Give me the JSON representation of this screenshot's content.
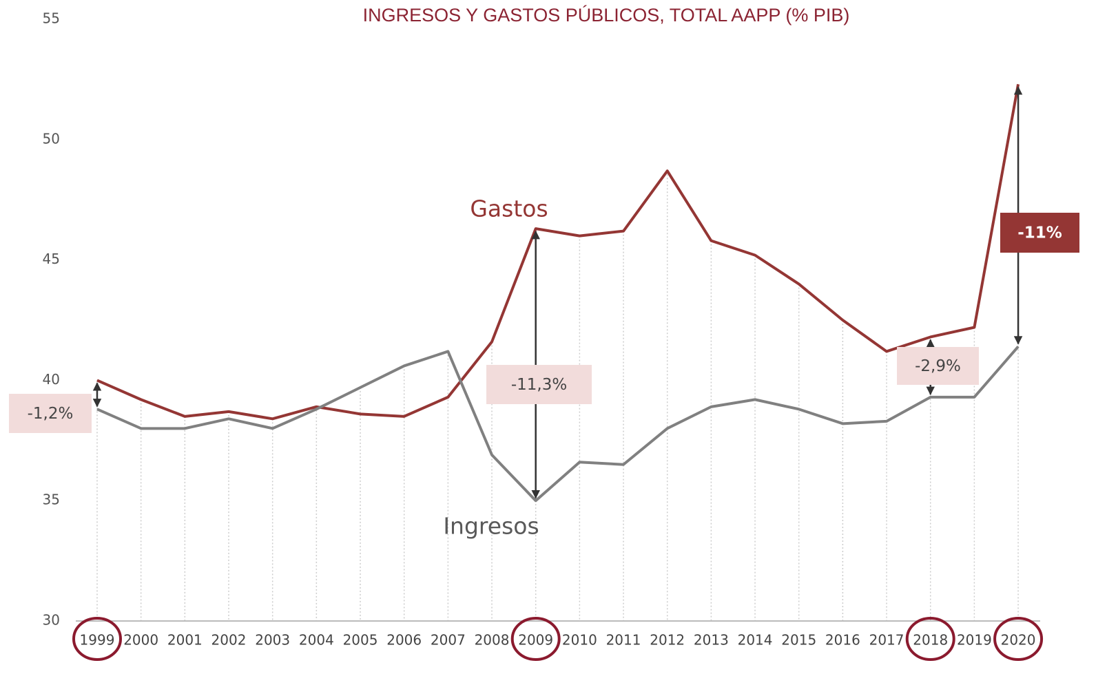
{
  "chart_data": {
    "type": "line",
    "title": "INGRESOS  Y GASTOS PÚBLICOS, TOTAL AAPP (% PIB)",
    "categories": [
      "1999",
      "2000",
      "2001",
      "2002",
      "2003",
      "2004",
      "2005",
      "2006",
      "2007",
      "2008",
      "2009",
      "2010",
      "2011",
      "2012",
      "2013",
      "2014",
      "2015",
      "2016",
      "2017",
      "2018",
      "2019",
      "2020"
    ],
    "series": [
      {
        "name": "Gastos",
        "color": "#943634",
        "values": [
          40.0,
          39.2,
          38.5,
          38.7,
          38.4,
          38.9,
          38.6,
          38.5,
          39.3,
          41.6,
          46.3,
          46.0,
          46.2,
          48.7,
          45.8,
          45.2,
          44.0,
          42.5,
          41.2,
          41.8,
          42.2,
          52.3
        ]
      },
      {
        "name": "Ingresos",
        "color": "#808080",
        "values": [
          38.8,
          38.0,
          38.0,
          38.4,
          38.0,
          38.8,
          39.7,
          40.6,
          41.2,
          36.9,
          35.0,
          36.6,
          36.5,
          38.0,
          38.9,
          39.2,
          38.8,
          38.2,
          38.3,
          39.3,
          39.3,
          41.4
        ]
      }
    ],
    "ylim": [
      30,
      55
    ],
    "yticks": [
      30,
      35,
      40,
      45,
      50,
      55
    ],
    "grid": true,
    "annotations": [
      "-1,2%",
      "-11,3%",
      "-2,9%",
      "-11%"
    ]
  }
}
